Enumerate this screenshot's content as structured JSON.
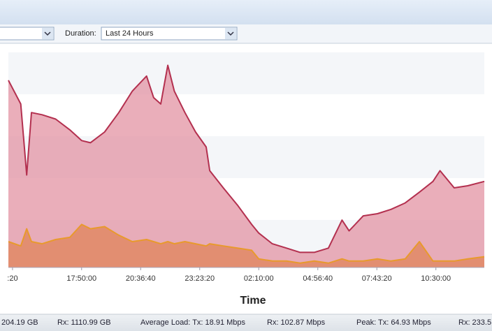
{
  "toolbar": {
    "duration_label": "Duration:",
    "duration_value": "Last 24 Hours"
  },
  "chart_data": {
    "type": "area",
    "x_label": "Time",
    "x": [
      -0.24,
      -0.03,
      0.07,
      0.15,
      0.33,
      0.56,
      0.8,
      1.0,
      1.15,
      1.39,
      1.63,
      1.86,
      2.1,
      2.22,
      2.34,
      2.46,
      2.57,
      2.75,
      2.93,
      3.11,
      3.17,
      3.4,
      3.64,
      3.88,
      4.0,
      4.23,
      4.47,
      4.7,
      4.94,
      5.18,
      5.41,
      5.53,
      5.77,
      6.01,
      6.24,
      6.48,
      6.72,
      6.95,
      7.07,
      7.31,
      7.54,
      7.82
    ],
    "series": [
      {
        "color": "#b3304f",
        "fill": "#e393a3",
        "values": [
          87,
          76,
          43,
          72,
          71,
          69,
          64,
          59,
          58,
          63,
          72,
          82,
          89,
          79,
          76,
          94,
          82,
          72,
          63,
          56,
          45,
          37,
          29,
          20,
          16,
          11,
          9,
          7,
          7,
          9,
          22,
          17,
          24,
          25,
          27,
          30,
          35,
          40,
          45,
          37,
          38,
          40
        ]
      },
      {
        "color": "#e89a2c",
        "fill": "#e0845a",
        "values": [
          12,
          10,
          18,
          12,
          11,
          13,
          14,
          20,
          18,
          19,
          15,
          12,
          13,
          12,
          11,
          12,
          11,
          12,
          11,
          10,
          11,
          10,
          9,
          8,
          4,
          3,
          3,
          2,
          3,
          2,
          4,
          3,
          3,
          4,
          3,
          4,
          12,
          3,
          3,
          3,
          4,
          5
        ]
      }
    ],
    "xlim": [
      -0.24,
      7.82
    ],
    "ylim": [
      0,
      100
    ],
    "xticks": [
      {
        "value": -0.17,
        "label": ":20"
      },
      {
        "value": 1,
        "label": "17:50:00"
      },
      {
        "value": 2,
        "label": "20:36:40"
      },
      {
        "value": 3,
        "label": "23:23:20"
      },
      {
        "value": 4,
        "label": "02:10:00"
      },
      {
        "value": 5,
        "label": "04:56:40"
      },
      {
        "value": 6,
        "label": "07:43:20"
      },
      {
        "value": 7,
        "label": "10:30:00"
      }
    ]
  },
  "footer": {
    "total_tx": "204.19 GB",
    "total_rx": "Rx: 1110.99 GB",
    "average_tx": "Average Load: Tx: 18.91 Mbps",
    "average_rx": "Rx: 102.87 Mbps",
    "peak_tx": "Peak: Tx: 64.93 Mbps",
    "peak_rx": "Rx: 233.5"
  }
}
